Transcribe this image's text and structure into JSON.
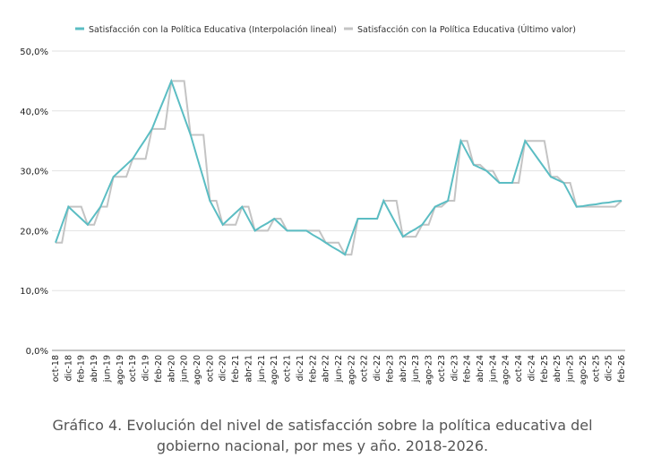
{
  "chart_data": {
    "type": "line",
    "caption": "Gráfico 4. Evolución del nivel de satisfacción sobre la política educativa del gobierno nacional, por mes y año. 2018-2026.",
    "categories": [
      "oct-18",
      null,
      "dic-18",
      null,
      "feb-19",
      null,
      "abr-19",
      null,
      "jun-19",
      null,
      "ago-19",
      null,
      "oct-19",
      null,
      "dic-19",
      null,
      "feb-20",
      null,
      "abr-20",
      null,
      "jun-20",
      null,
      "ago-20",
      null,
      "oct-20",
      null,
      "dic-20",
      null,
      "feb-21",
      null,
      "abr-21",
      null,
      "jun-21",
      null,
      "ago-21",
      null,
      "oct-21",
      null,
      "dic-21",
      null,
      "feb-22",
      null,
      "abr-22",
      null,
      "jun-22",
      null,
      "ago-22",
      null,
      "oct-22",
      null,
      "dic-22",
      null,
      "feb-23",
      null,
      "abr-23",
      null,
      "jun-23",
      null,
      "ago-23",
      null,
      "oct-23",
      null,
      "dic-23",
      null,
      "feb-24",
      null,
      "abr-24",
      null,
      "jun-24",
      null,
      "ago-24",
      null,
      "oct-24",
      null,
      "dic-24",
      null,
      "feb-25",
      null,
      "abr-25",
      null,
      "jun-25",
      null,
      "ago-25",
      null,
      "oct-25",
      null,
      "dic-25",
      null,
      "feb-26"
    ],
    "series": [
      {
        "name": "Satisfacción con la Política Educativa (Interpolación lineal)",
        "color": "#5bbdc3",
        "values": [
          18,
          21,
          24,
          23,
          22,
          21,
          22.5,
          24,
          26.5,
          29,
          30,
          31,
          32,
          33.7,
          35.3,
          37,
          39.7,
          42.3,
          45,
          42,
          39,
          36,
          32.3,
          28.7,
          25,
          23,
          21,
          22,
          23,
          24,
          22,
          20,
          20.7,
          21.3,
          22,
          21,
          20,
          20,
          20,
          20,
          19.3,
          18.7,
          18,
          17.3,
          16.7,
          16,
          19,
          22,
          22,
          22,
          22,
          25,
          23,
          21,
          19,
          19.7,
          20.3,
          21,
          22.5,
          24,
          24.5,
          25,
          30,
          35,
          33,
          31,
          30.5,
          30,
          29,
          28,
          28,
          28,
          31.5,
          35,
          33.5,
          32,
          30.5,
          29,
          28.5,
          28,
          26,
          24,
          24.1,
          24.3,
          24.4,
          24.6,
          24.7,
          24.9,
          25
        ]
      },
      {
        "name": "Satisfacción con la Política Educativa (Último valor)",
        "color": "#c4c4c4",
        "values": [
          18,
          18,
          24,
          24,
          24,
          21,
          21,
          24,
          24,
          29,
          29,
          29,
          32,
          32,
          32,
          37,
          37,
          37,
          45,
          45,
          45,
          36,
          36,
          36,
          25,
          25,
          21,
          21,
          21,
          24,
          24,
          20,
          20,
          20,
          22,
          22,
          20,
          20,
          20,
          20,
          20,
          20,
          18,
          18,
          18,
          16,
          16,
          22,
          22,
          22,
          22,
          25,
          25,
          25,
          19,
          19,
          19,
          21,
          21,
          24,
          24,
          25,
          25,
          35,
          35,
          31,
          31,
          30,
          30,
          28,
          28,
          28,
          28,
          35,
          35,
          35,
          35,
          29,
          29,
          28,
          28,
          24,
          24,
          24,
          24,
          24,
          24,
          24,
          25
        ]
      }
    ],
    "ylim": [
      0,
      50
    ],
    "yticks": [
      {
        "value": 0,
        "label": "0,0%"
      },
      {
        "value": 10,
        "label": "10,0%"
      },
      {
        "value": 20,
        "label": "20,0%"
      },
      {
        "value": 30,
        "label": "30,0%"
      },
      {
        "value": 40,
        "label": "40,0%"
      },
      {
        "value": 50,
        "label": "50,0%"
      }
    ],
    "grid": true,
    "legend": "top"
  }
}
